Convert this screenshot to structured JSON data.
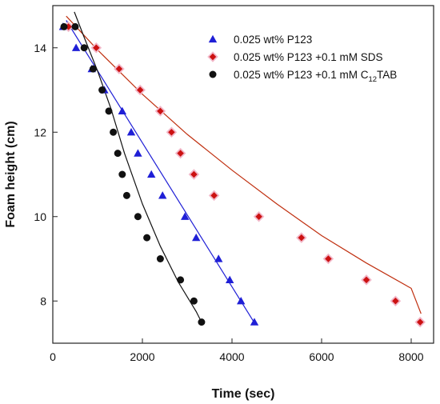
{
  "chart_data": {
    "type": "scatter",
    "xlabel": "Time (sec)",
    "ylabel": "Foam height (cm)",
    "xlim": [
      0,
      8500
    ],
    "ylim": [
      7,
      15
    ],
    "xticks": [
      0,
      2000,
      4000,
      6000,
      8000
    ],
    "yticks": [
      8,
      10,
      12,
      14
    ],
    "grid": false,
    "legend_position": "top-right",
    "series": [
      {
        "name": "0.025 wt% P123",
        "marker": "triangle",
        "color": "#1f1fd6",
        "fit_color": "#1f1fd6",
        "x": [
          230,
          520,
          870,
          1150,
          1550,
          1750,
          1900,
          2200,
          2450,
          2950,
          3200,
          3700,
          3950,
          4200,
          4500
        ],
        "y": [
          14.5,
          14.0,
          13.5,
          13.0,
          12.5,
          12.0,
          11.5,
          11.0,
          10.5,
          10.0,
          9.5,
          9.0,
          8.5,
          8.0,
          7.5
        ],
        "fit": [
          [
            300,
            14.65
          ],
          [
            4520,
            7.45
          ]
        ]
      },
      {
        "name": "0.025 wt% P123 +0.1 mM SDS",
        "marker": "diamond",
        "color": "#cc1111",
        "fit_color": "#c03010",
        "x": [
          350,
          970,
          1480,
          1950,
          2400,
          2650,
          2850,
          3150,
          3600,
          4600,
          5550,
          6150,
          7000,
          7650,
          8200
        ],
        "y": [
          14.5,
          14.0,
          13.5,
          13.0,
          12.5,
          12.0,
          11.5,
          11.0,
          10.5,
          10.0,
          9.5,
          9.0,
          8.5,
          8.0,
          7.5
        ],
        "fit": [
          [
            300,
            14.75
          ],
          [
            1000,
            13.95
          ],
          [
            2000,
            12.9
          ],
          [
            3000,
            11.95
          ],
          [
            4000,
            11.1
          ],
          [
            5000,
            10.3
          ],
          [
            6000,
            9.55
          ],
          [
            7000,
            8.9
          ],
          [
            8000,
            8.3
          ],
          [
            8220,
            7.7
          ]
        ]
      },
      {
        "name": "0.025 wt% P123 +0.1 mM C",
        "name_sub": "12",
        "name_suffix": "TAB",
        "marker": "circle",
        "color": "#111111",
        "fit_color": "#111111",
        "x": [
          250,
          500,
          700,
          900,
          1100,
          1250,
          1350,
          1450,
          1550,
          1650,
          1900,
          2100,
          2400,
          2850,
          3150,
          3320
        ],
        "y": [
          14.5,
          14.5,
          14.0,
          13.5,
          13.0,
          12.5,
          12.0,
          11.5,
          11.0,
          10.5,
          10.0,
          9.5,
          9.0,
          8.5,
          8.0,
          7.5
        ],
        "fit": [
          [
            480,
            14.85
          ],
          [
            700,
            14.25
          ],
          [
            1000,
            13.45
          ],
          [
            1300,
            12.55
          ],
          [
            1600,
            11.5
          ],
          [
            2000,
            10.3
          ],
          [
            2400,
            9.3
          ],
          [
            2800,
            8.45
          ],
          [
            3200,
            7.75
          ],
          [
            3320,
            7.5
          ]
        ]
      }
    ]
  }
}
